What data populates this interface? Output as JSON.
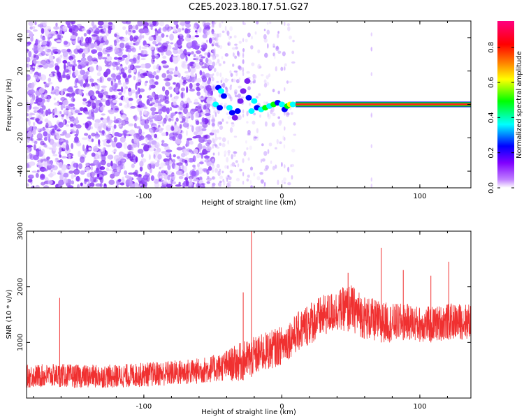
{
  "page_title": "C2E5.2023.180.17.51.G27",
  "chart_data": [
    {
      "type": "heatmap",
      "xlabel": "Height of straight line (km)",
      "ylabel": "Frequency (Hz)",
      "xlim": [
        -185,
        137
      ],
      "ylim": [
        -50,
        50
      ],
      "xticks": [
        -100,
        0,
        100
      ],
      "yticks": [
        -40,
        -20,
        0,
        20,
        40
      ],
      "colorbar": {
        "label": "Normalized spectral amplitude",
        "range": [
          0,
          0.95
        ],
        "ticks": [
          "0.0",
          "0.2",
          "0.4",
          "0.6",
          "0.8"
        ],
        "colormap": [
          "#ffffff",
          "#8000ff",
          "#0000ff",
          "#00ffff",
          "#00ff00",
          "#ffff00",
          "#ff8000",
          "#ff0000",
          "#ff0080"
        ]
      },
      "features": {
        "noise_region_x": [
          -185,
          -50
        ],
        "noise_color": "#7a2cf0",
        "carrier_start_x": 10,
        "carrier_frequency": 0
      },
      "grid": false
    },
    {
      "type": "line",
      "xlabel": "Height of straight line (km)",
      "ylabel": "SNR (10 * v/v)",
      "xlim": [
        -185,
        137
      ],
      "ylim": [
        0,
        3000
      ],
      "xticks": [
        -100,
        0,
        100
      ],
      "yticks": [
        1000,
        2000,
        3000
      ],
      "line_color": "#f03030",
      "envelope": {
        "x": [
          -185,
          -160,
          -150,
          -120,
          -100,
          -80,
          -60,
          -45,
          -30,
          -15,
          0,
          10,
          20,
          30,
          40,
          50,
          60,
          70,
          80,
          90,
          100,
          110,
          120,
          137
        ],
        "low": [
          180,
          200,
          180,
          180,
          200,
          220,
          250,
          300,
          300,
          450,
          600,
          800,
          950,
          1100,
          1200,
          1200,
          1050,
          1000,
          1000,
          1050,
          1000,
          1000,
          1050,
          1050
        ],
        "high": [
          600,
          620,
          600,
          600,
          640,
          680,
          720,
          800,
          1000,
          1150,
          1300,
          1500,
          1750,
          1850,
          1950,
          2050,
          1850,
          1750,
          1700,
          1700,
          1650,
          1650,
          1700,
          1700
        ]
      },
      "spikes": [
        {
          "x": -161,
          "y": 1800
        },
        {
          "x": -22,
          "y": 3000
        },
        {
          "x": -28,
          "y": 1900
        },
        {
          "x": 48,
          "y": 2250
        },
        {
          "x": 72,
          "y": 2700
        },
        {
          "x": 88,
          "y": 2300
        },
        {
          "x": 108,
          "y": 2200
        },
        {
          "x": 121,
          "y": 2450
        }
      ],
      "grid": false
    }
  ]
}
